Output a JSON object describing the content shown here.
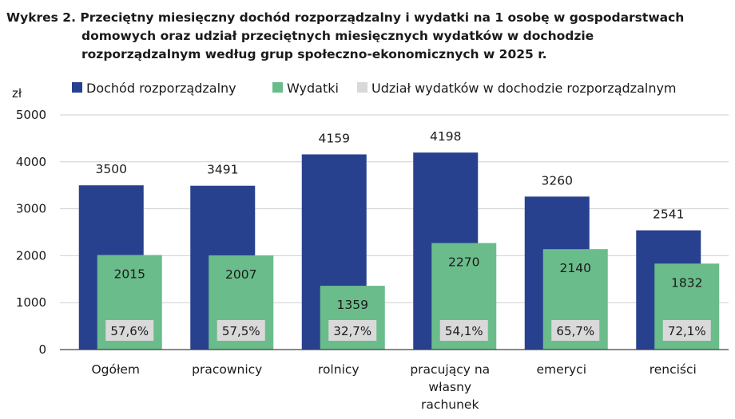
{
  "chart_data": {
    "type": "bar",
    "title_lines": [
      "Wykres 2. Przeciętny miesięczny dochód rozporządzalny i wydatki na 1 osobę w gospodarstwach",
      "domowych oraz udział przeciętnych miesięcznych wydatków w dochodzie",
      "rozporządzalnym według grup społeczno-ekonomicznych w 2025 r."
    ],
    "ylabel": "zł",
    "ylim": [
      0,
      5000
    ],
    "yticks": [
      0,
      1000,
      2000,
      3000,
      4000,
      5000
    ],
    "categories": [
      [
        "Ogółem"
      ],
      [
        "pracownicy"
      ],
      [
        "rolnicy"
      ],
      [
        "pracujący na",
        "własny",
        "rachunek"
      ],
      [
        "emeryci"
      ],
      [
        "renciści"
      ]
    ],
    "series": [
      {
        "name": "Dochód rozporządzalny",
        "color": "#28418f",
        "values": [
          3500,
          3491,
          4159,
          4198,
          3260,
          2541
        ]
      },
      {
        "name": "Wydatki",
        "color": "#6bbc8b",
        "values": [
          2015,
          2007,
          1359,
          2270,
          2140,
          1832
        ]
      }
    ],
    "share": {
      "name": "Udział wydatków w dochodzie rozporządzalnym",
      "color": "#d9d9d9",
      "values": [
        "57,6%",
        "57,5%",
        "32,7%",
        "54,1%",
        "65,7%",
        "72,1%"
      ]
    },
    "grid": true,
    "legend_position": "top"
  }
}
